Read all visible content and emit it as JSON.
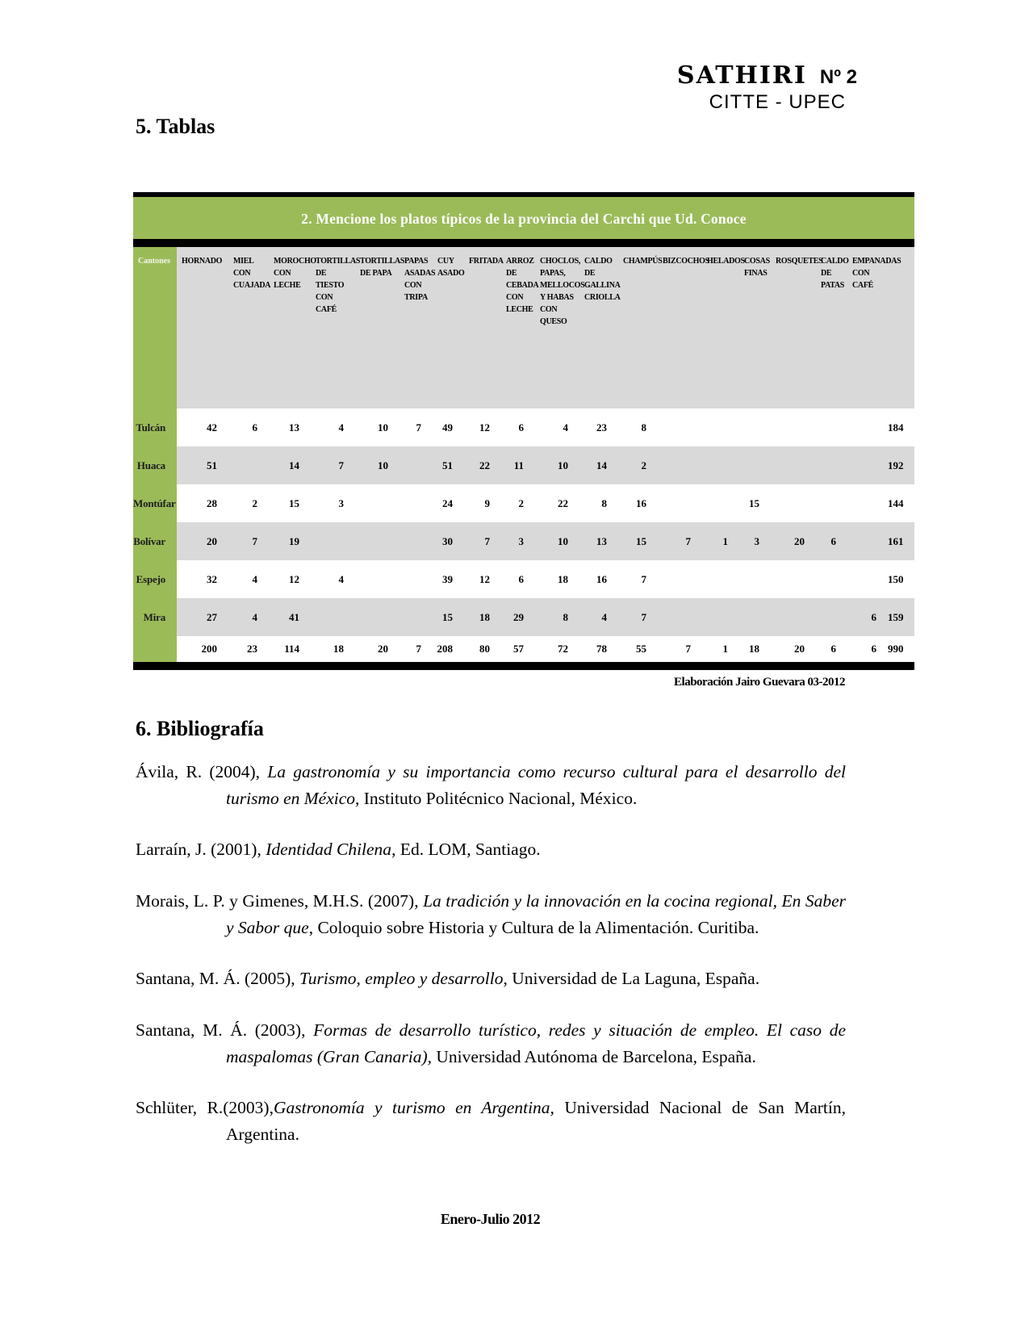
{
  "header": {
    "journal": "SATHIRI",
    "issue": "Nº 2",
    "org": "CITTE - UPEC"
  },
  "sections": {
    "tablas_heading": "5. Tablas",
    "biblio_heading": "6. Bibliografía"
  },
  "table": {
    "title": "2. Mencione los platos típicos de la provincia del Carchi que Ud. Conoce",
    "corner_label": "Cantones",
    "credit": "Elaboración Jairo Guevara 03-2012",
    "columns": [
      "HORNADO",
      "MIEL CON CUAJADA",
      "MOROCHO CON LECHE",
      "TORTILLAS DE TIESTO CON CAFÉ",
      "TORTILLAS DE PAPA",
      "PAPAS ASADAS CON TRIPA",
      "CUY ASADO",
      "FRITADA",
      "ARROZ DE CEBADA CON LECHE",
      "CHOCLOS, PAPAS, MELLOCOS Y HABAS CON QUESO",
      "CALDO DE GALLINA CRIOLLA",
      "CHAMPÚS",
      "BIZCOCHOS",
      "HELADOS",
      "COSAS FINAS",
      "ROSQUETES",
      "CALDO DE PATAS",
      "EMPANADAS CON CAFÉ"
    ],
    "rows": [
      {
        "label": "Tulcán",
        "values": [
          42,
          6,
          13,
          4,
          10,
          7,
          49,
          12,
          6,
          4,
          23,
          8,
          "",
          "",
          "",
          "",
          "",
          ""
        ],
        "total": 184
      },
      {
        "label": "Huaca",
        "values": [
          51,
          "",
          14,
          7,
          10,
          "",
          51,
          22,
          11,
          10,
          14,
          2,
          "",
          "",
          "",
          "",
          "",
          ""
        ],
        "total": 192
      },
      {
        "label": "Montúfar",
        "values": [
          28,
          2,
          15,
          3,
          "",
          "",
          24,
          9,
          2,
          22,
          8,
          16,
          "",
          "",
          15,
          "",
          "",
          ""
        ],
        "total": 144
      },
      {
        "label": "Bolívar",
        "values": [
          20,
          7,
          19,
          "",
          "",
          "",
          30,
          7,
          3,
          10,
          13,
          15,
          7,
          1,
          3,
          20,
          6,
          ""
        ],
        "total": 161
      },
      {
        "label": "Espejo",
        "values": [
          32,
          4,
          12,
          4,
          "",
          "",
          39,
          12,
          6,
          18,
          16,
          7,
          "",
          "",
          "",
          "",
          "",
          ""
        ],
        "total": 150
      },
      {
        "label": "Mira",
        "values": [
          27,
          4,
          41,
          "",
          "",
          "",
          15,
          18,
          29,
          8,
          4,
          7,
          "",
          "",
          "",
          "",
          "",
          6
        ],
        "total": 159
      }
    ],
    "totals": {
      "label": "",
      "values": [
        200,
        23,
        114,
        18,
        20,
        7,
        208,
        80,
        57,
        72,
        78,
        55,
        7,
        1,
        18,
        20,
        6,
        6
      ],
      "total": 990
    },
    "colors": {
      "green": "#9bbb59",
      "stripe_gray": "#d9d9d9",
      "bar_black": "#000000"
    }
  },
  "bibliography": {
    "entries": [
      {
        "segments": [
          {
            "text": "Ávila, R. (2004), ",
            "italic": false
          },
          {
            "text": "La gastronomía y su importancia como recurso cultural para el desarrollo del turismo en México",
            "italic": true
          },
          {
            "text": ", Instituto Politécnico Nacional, México.",
            "italic": false
          }
        ]
      },
      {
        "segments": [
          {
            "text": "Larraín, J. (2001), ",
            "italic": false
          },
          {
            "text": "Identidad Chilena",
            "italic": true
          },
          {
            "text": ", Ed. LOM, Santiago.",
            "italic": false
          }
        ]
      },
      {
        "segments": [
          {
            "text": "Morais, L. P. y Gimenes, M.H.S. (2007), ",
            "italic": false
          },
          {
            "text": "La tradición y la innovación en la cocina regional, En Saber y Sabor que",
            "italic": true
          },
          {
            "text": ", Coloquio sobre Historia y Cultura de la Alimentación. Curitiba.",
            "italic": false
          }
        ]
      },
      {
        "segments": [
          {
            "text": "Santana, M. Á. (2005), ",
            "italic": false
          },
          {
            "text": "Turismo, empleo y desarrollo",
            "italic": true
          },
          {
            "text": ", Universidad de La Laguna, España.",
            "italic": false
          }
        ]
      },
      {
        "segments": [
          {
            "text": "Santana, M. Á. (2003), ",
            "italic": false
          },
          {
            "text": "Formas de desarrollo turístico, redes y situación de empleo. El caso de maspalomas (Gran Canaria),",
            "italic": true
          },
          {
            "text": " Universidad Autónoma de Barcelona, España.",
            "italic": false
          }
        ]
      },
      {
        "segments": [
          {
            "text": "Schlüter, R.(2003),",
            "italic": false
          },
          {
            "text": "Gastronomía y turismo en Argentina,",
            "italic": true
          },
          {
            "text": " Universidad Nacional de San Martín, Argentina.",
            "italic": false
          }
        ]
      }
    ]
  },
  "footer": {
    "text": "Enero-Julio 2012"
  }
}
